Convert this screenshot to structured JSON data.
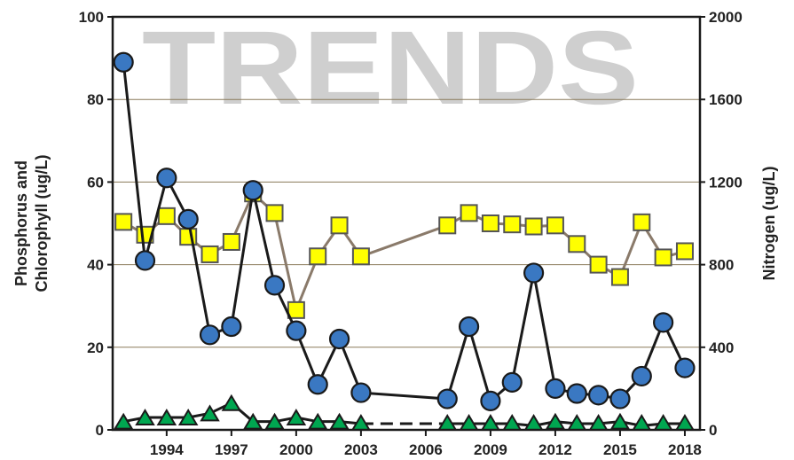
{
  "chart_data": {
    "type": "line",
    "watermark": "TRENDS",
    "ylabel_left_line1": "Phosphorus and",
    "ylabel_left_line2": "Chlorophyll (ug/L)",
    "ylabel_right": "Nitrogen (ug/L)",
    "xlim": [
      1991.5,
      2018.7
    ],
    "ylim_left": [
      0,
      100
    ],
    "ylim_right": [
      0,
      2000
    ],
    "grid": true,
    "x_ticks": [
      1994,
      1997,
      2000,
      2003,
      2006,
      2009,
      2012,
      2015,
      2018
    ],
    "y_left_ticks": [
      0,
      20,
      40,
      60,
      80,
      100
    ],
    "y_right_ticks": [
      0,
      400,
      800,
      1200,
      1600,
      2000
    ],
    "colors": {
      "chlorophyll_marker": "#3a78c2",
      "chlorophyll_line": "#1a1a1a",
      "nitrogen_marker": "#ffff00",
      "nitrogen_line": "#8a7a6a",
      "phosphorus_marker": "#00a650",
      "phosphorus_line": "#1a1a1a",
      "grid": "#8a7a5a"
    },
    "series": [
      {
        "key": "chlorophyll",
        "axis": "left",
        "marker": "circle",
        "x": [
          1992,
          1993,
          1994,
          1995,
          1996,
          1997,
          1998,
          1999,
          2000,
          2001,
          2002,
          2003,
          2007,
          2008,
          2009,
          2010,
          2011,
          2012,
          2013,
          2014,
          2015,
          2016,
          2017,
          2018
        ],
        "y": [
          89,
          41,
          61,
          51,
          23,
          25,
          58,
          35,
          24,
          11,
          22,
          9,
          7.5,
          25,
          7,
          11.5,
          38,
          10,
          8.8,
          8.4,
          7.5,
          13,
          26,
          15
        ]
      },
      {
        "key": "nitrogen",
        "axis": "right",
        "marker": "square",
        "x": [
          1992,
          1993,
          1994,
          1995,
          1996,
          1997,
          1998,
          1999,
          2000,
          2001,
          2002,
          2003,
          2007,
          2008,
          2009,
          2010,
          2011,
          2012,
          2013,
          2014,
          2015,
          2016,
          2017,
          2018
        ],
        "y": [
          1007,
          945,
          1035,
          935,
          850,
          910,
          1145,
          1050,
          580,
          840,
          990,
          840,
          990,
          1050,
          1000,
          995,
          985,
          990,
          900,
          800,
          740,
          1005,
          835,
          865
        ]
      },
      {
        "key": "phosphorus",
        "axis": "left",
        "marker": "triangle",
        "x": [
          1992,
          1993,
          1994,
          1995,
          1996,
          1997,
          1998,
          1999,
          2000,
          2001,
          2002,
          2003,
          2007,
          2008,
          2009,
          2010,
          2011,
          2012,
          2013,
          2014,
          2015,
          2016,
          2017,
          2018
        ],
        "y": [
          2,
          3,
          3,
          3,
          4,
          6.5,
          2,
          2,
          3,
          2,
          2,
          1.5,
          1.5,
          1.5,
          1.5,
          1.5,
          1,
          2,
          1.5,
          1.5,
          2,
          1,
          1.5,
          1.5
        ]
      }
    ]
  }
}
